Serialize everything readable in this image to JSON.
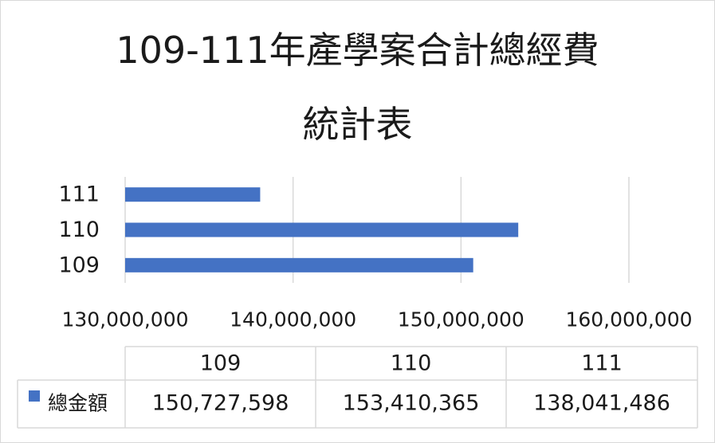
{
  "chart_data": {
    "type": "bar",
    "orientation": "horizontal",
    "title_line1": "109-111年產學案合計總經費",
    "title_line2": "統計表",
    "categories": [
      "109",
      "110",
      "111"
    ],
    "series": [
      {
        "name": "總金額",
        "values": [
          150727598,
          153410365,
          138041486
        ],
        "color": "#4472c4"
      }
    ],
    "value_labels": [
      "150,727,598",
      "153,410,365",
      "138,041,486"
    ],
    "xlim": [
      130000000,
      160000000
    ],
    "xticks": [
      130000000,
      140000000,
      150000000,
      160000000
    ],
    "xtick_labels": [
      "130,000,000",
      "140,000,000",
      "150,000,000",
      "160,000,000"
    ],
    "grid": true,
    "data_table": true
  }
}
